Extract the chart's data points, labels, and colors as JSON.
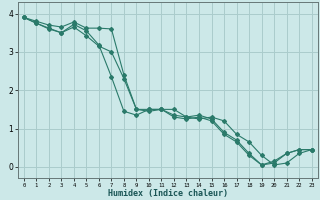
{
  "title": "",
  "xlabel": "Humidex (Indice chaleur)",
  "ylabel": "",
  "bg_color": "#cce8e8",
  "grid_color": "#aacccc",
  "line_color": "#2a7a6a",
  "xlim": [
    -0.5,
    23.5
  ],
  "ylim": [
    -0.3,
    4.3
  ],
  "xticks": [
    0,
    1,
    2,
    3,
    4,
    5,
    6,
    7,
    8,
    9,
    10,
    11,
    12,
    13,
    14,
    15,
    16,
    17,
    18,
    19,
    20,
    21,
    22,
    23
  ],
  "yticks": [
    0,
    1,
    2,
    3,
    4
  ],
  "line1_x": [
    0,
    1,
    2,
    3,
    4,
    5,
    6,
    7,
    8,
    9,
    10,
    11,
    12,
    13,
    14,
    15,
    16,
    17,
    18,
    19,
    20,
    21,
    22,
    23
  ],
  "line1_y": [
    3.9,
    3.75,
    3.6,
    3.5,
    3.72,
    3.55,
    3.18,
    2.35,
    1.45,
    1.35,
    1.5,
    1.5,
    1.5,
    1.3,
    1.25,
    1.3,
    1.2,
    0.85,
    0.65,
    0.3,
    0.05,
    0.1,
    0.35,
    0.45
  ],
  "line2_x": [
    0,
    1,
    2,
    3,
    4,
    5,
    6,
    7,
    8,
    9,
    10,
    11,
    12,
    13,
    14,
    15,
    16,
    17,
    18,
    19,
    20,
    21,
    22,
    23
  ],
  "line2_y": [
    3.9,
    3.8,
    3.7,
    3.65,
    3.78,
    3.62,
    3.62,
    3.6,
    2.4,
    1.5,
    1.45,
    1.5,
    1.35,
    1.3,
    1.35,
    1.25,
    0.9,
    0.7,
    0.35,
    0.05,
    0.15,
    0.35,
    0.45,
    0.45
  ],
  "line3_x": [
    0,
    1,
    2,
    3,
    4,
    5,
    6,
    7,
    8,
    9,
    10,
    11,
    12,
    13,
    14,
    15,
    16,
    17,
    18,
    19,
    20,
    21,
    22,
    23
  ],
  "line3_y": [
    3.9,
    3.75,
    3.62,
    3.5,
    3.65,
    3.42,
    3.15,
    3.0,
    2.3,
    1.5,
    1.5,
    1.5,
    1.3,
    1.25,
    1.3,
    1.2,
    0.85,
    0.65,
    0.3,
    0.05,
    0.1,
    0.35,
    0.45,
    0.45
  ]
}
